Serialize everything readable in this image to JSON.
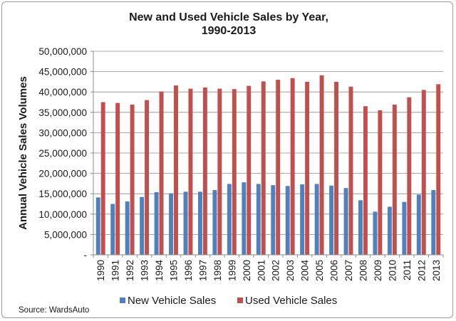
{
  "source_label": "Source: WardsAuto",
  "chart_data": {
    "type": "bar",
    "title": "New and Used Vehicle Sales by Year,",
    "subtitle": "1990-2013",
    "ylabel": "Annual Vehicle Sales Volumes",
    "xlabel": "",
    "ylim": [
      0,
      50000000
    ],
    "yticks": [
      0,
      5000000,
      10000000,
      15000000,
      20000000,
      25000000,
      30000000,
      35000000,
      40000000,
      45000000,
      50000000
    ],
    "ytick_labels": [
      "-",
      "5,000,000",
      "10,000,000",
      "15,000,000",
      "20,000,000",
      "25,000,000",
      "30,000,000",
      "35,000,000",
      "40,000,000",
      "45,000,000",
      "50,000,000"
    ],
    "grid": "horizontal",
    "legend_position": "bottom",
    "categories": [
      "1990",
      "1991",
      "1992",
      "1993",
      "1994",
      "1995",
      "1996",
      "1997",
      "1998",
      "1999",
      "2000",
      "2001",
      "2002",
      "2003",
      "2004",
      "2005",
      "2006",
      "2007",
      "2008",
      "2009",
      "2010",
      "2011",
      "2012",
      "2013"
    ],
    "series": [
      {
        "name": "New Vehicle Sales",
        "color": "#4f81bd",
        "values": [
          14100000,
          12500000,
          13100000,
          14200000,
          15400000,
          15100000,
          15500000,
          15500000,
          15900000,
          17400000,
          17800000,
          17400000,
          17100000,
          16900000,
          17300000,
          17400000,
          17000000,
          16400000,
          13400000,
          10600000,
          11800000,
          13000000,
          14800000,
          15900000
        ]
      },
      {
        "name": "Used Vehicle Sales",
        "color": "#c0504d",
        "values": [
          37500000,
          37300000,
          36900000,
          38000000,
          40100000,
          41600000,
          40800000,
          41100000,
          40800000,
          40700000,
          41500000,
          42600000,
          43000000,
          43400000,
          42500000,
          44100000,
          42500000,
          41300000,
          36500000,
          35500000,
          36900000,
          38700000,
          40500000,
          41900000
        ]
      }
    ]
  }
}
